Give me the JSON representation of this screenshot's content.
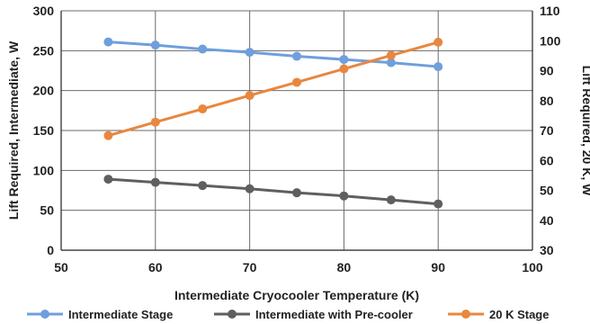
{
  "chart_data": {
    "type": "line",
    "xlabel": "Intermediate Cryocooler Temperature (K)",
    "ylabel": "Lift Required, Intermediate, W",
    "y2label": "Lift Required, 20 K, W",
    "xlim": [
      50,
      100
    ],
    "xticks": [
      50,
      60,
      70,
      80,
      90,
      100
    ],
    "ylim": [
      0,
      300
    ],
    "yticks": [
      0,
      50,
      100,
      150,
      200,
      250,
      300
    ],
    "y2lim": [
      30,
      110
    ],
    "y2ticks": [
      30,
      40,
      50,
      60,
      70,
      80,
      90,
      100,
      110
    ],
    "grid": true,
    "legend_position": "bottom",
    "x": [
      55,
      60,
      65,
      70,
      75,
      80,
      85,
      90
    ],
    "series": [
      {
        "name": "Intermediate Stage",
        "axis": "left",
        "color": "#6f9fdc",
        "values": [
          261,
          257,
          252,
          248,
          243,
          239,
          235,
          230
        ]
      },
      {
        "name": "Intermediate with Pre-cooler",
        "axis": "left",
        "color": "#5f5f5f",
        "values": [
          89,
          85,
          81,
          77,
          72,
          68,
          63,
          58
        ]
      },
      {
        "name": "20 K Stage",
        "axis": "right",
        "color": "#e8873e",
        "values": [
          68.3,
          72.8,
          77.2,
          81.7,
          86.1,
          90.6,
          95.1,
          99.5
        ]
      }
    ]
  }
}
